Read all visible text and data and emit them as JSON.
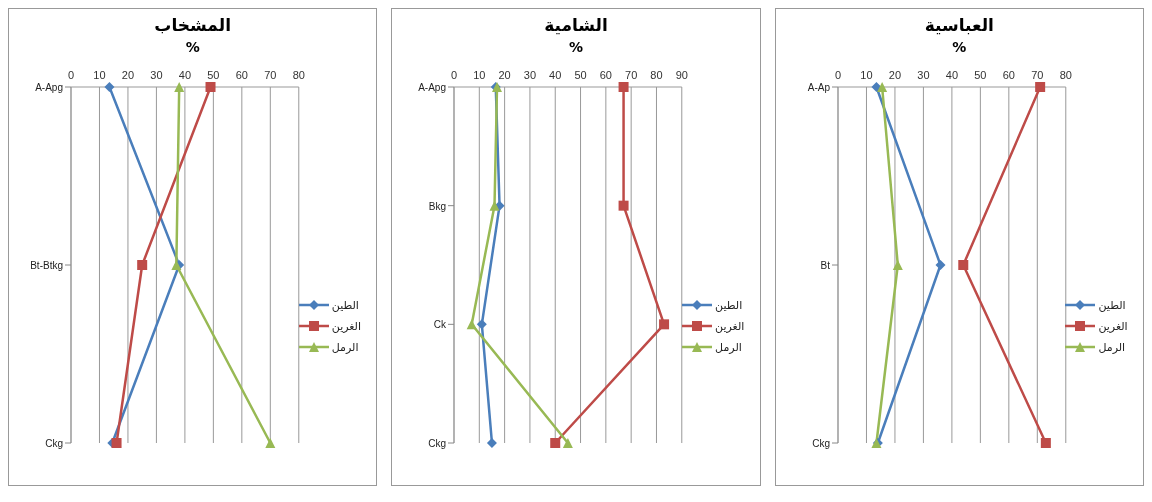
{
  "chart_data": [
    {
      "type": "line",
      "orientation": "horizontal",
      "title": "المشخاب",
      "xlabel": "%",
      "categories": [
        "A-Apg",
        "Bt-Btkg",
        "Ckg"
      ],
      "xlim": [
        0,
        80
      ],
      "xticks": [
        0,
        10,
        20,
        30,
        40,
        50,
        60,
        70,
        80
      ],
      "grid": "x",
      "legend": "right",
      "series": [
        {
          "name": "الطين",
          "color": "#4a7ebb",
          "marker": "diamond",
          "values": [
            13.5,
            38,
            14.5
          ]
        },
        {
          "name": "الغرين",
          "color": "#be4b48",
          "marker": "square",
          "values": [
            49,
            25,
            16
          ]
        },
        {
          "name": "الرمل",
          "color": "#98b954",
          "marker": "triangle",
          "values": [
            38,
            37,
            70
          ]
        }
      ]
    },
    {
      "type": "line",
      "orientation": "horizontal",
      "title": "الشامية",
      "xlabel": "%",
      "categories": [
        "A-Apg",
        "Bkg",
        "Ck",
        "Ckg"
      ],
      "xlim": [
        0,
        90
      ],
      "xticks": [
        0,
        10,
        20,
        30,
        40,
        50,
        60,
        70,
        80,
        90
      ],
      "grid": "x",
      "legend": "right",
      "series": [
        {
          "name": "الطين",
          "color": "#4a7ebb",
          "marker": "diamond",
          "values": [
            16.5,
            18,
            11,
            15
          ]
        },
        {
          "name": "الغرين",
          "color": "#be4b48",
          "marker": "square",
          "values": [
            67,
            67,
            83,
            40
          ]
        },
        {
          "name": "الرمل",
          "color": "#98b954",
          "marker": "triangle",
          "values": [
            17,
            16,
            7,
            45
          ]
        }
      ]
    },
    {
      "type": "line",
      "orientation": "horizontal",
      "title": "العباسية",
      "xlabel": "%",
      "categories": [
        "A-Ap",
        "Bt",
        "Ckg"
      ],
      "xlim": [
        0,
        80
      ],
      "xticks": [
        0,
        10,
        20,
        30,
        40,
        50,
        60,
        70,
        80
      ],
      "grid": "x",
      "legend": "right",
      "series": [
        {
          "name": "الطين",
          "color": "#4a7ebb",
          "marker": "diamond",
          "values": [
            13.5,
            36,
            14
          ]
        },
        {
          "name": "الغرين",
          "color": "#be4b48",
          "marker": "square",
          "values": [
            71,
            44,
            73
          ]
        },
        {
          "name": "الرمل",
          "color": "#98b954",
          "marker": "triangle",
          "values": [
            15.5,
            21,
            13.5
          ]
        }
      ]
    }
  ]
}
